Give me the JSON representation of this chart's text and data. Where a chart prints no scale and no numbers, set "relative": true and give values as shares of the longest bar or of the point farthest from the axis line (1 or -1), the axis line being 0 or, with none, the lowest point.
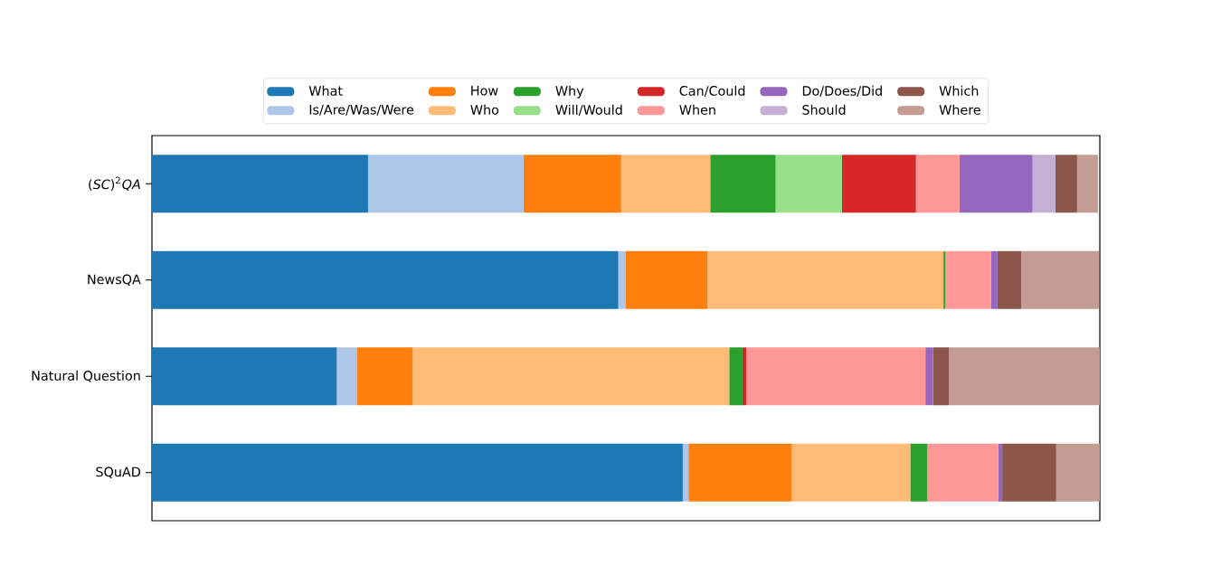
{
  "chart_data": {
    "type": "bar",
    "orientation": "horizontal",
    "stacked": true,
    "relative": true,
    "legend": "top",
    "tick_labels": "y",
    "categories": [
      "(*SC*)$^{2}$*QA*",
      "NewsQA",
      "Natural Question",
      "SQuAD"
    ],
    "series": [
      {
        "name": "What",
        "color": "#1f77b4",
        "values": [
          0.228,
          0.492,
          0.195,
          0.56
        ]
      },
      {
        "name": "Is/Are/Was/Were",
        "color": "#aec7e8",
        "values": [
          0.164,
          0.008,
          0.021,
          0.006
        ]
      },
      {
        "name": "How",
        "color": "#ff7f0e",
        "values": [
          0.103,
          0.086,
          0.059,
          0.109
        ]
      },
      {
        "name": "Who",
        "color": "#ffbb78",
        "values": [
          0.094,
          0.249,
          0.334,
          0.125
        ]
      },
      {
        "name": "Why",
        "color": "#2ca02c",
        "values": [
          0.069,
          0.002,
          0.014,
          0.018
        ]
      },
      {
        "name": "Will/Would",
        "color": "#98df8a",
        "values": [
          0.07,
          0,
          0,
          0
        ]
      },
      {
        "name": "Can/Could",
        "color": "#d62728",
        "values": [
          0.078,
          0,
          0.004,
          0
        ]
      },
      {
        "name": "When",
        "color": "#ff9896",
        "values": [
          0.046,
          0.048,
          0.189,
          0.075
        ]
      },
      {
        "name": "Do/Does/Did",
        "color": "#9467bd",
        "values": [
          0.077,
          0.007,
          0.008,
          0.004
        ]
      },
      {
        "name": "Should",
        "color": "#c5b0d5",
        "values": [
          0.024,
          0,
          0,
          0
        ]
      },
      {
        "name": "Which",
        "color": "#8c564b",
        "values": [
          0.023,
          0.025,
          0.017,
          0.057
        ]
      },
      {
        "name": "Where",
        "color": "#c49c94",
        "values": [
          0.022,
          0.082,
          0.159,
          0.046
        ]
      }
    ]
  }
}
